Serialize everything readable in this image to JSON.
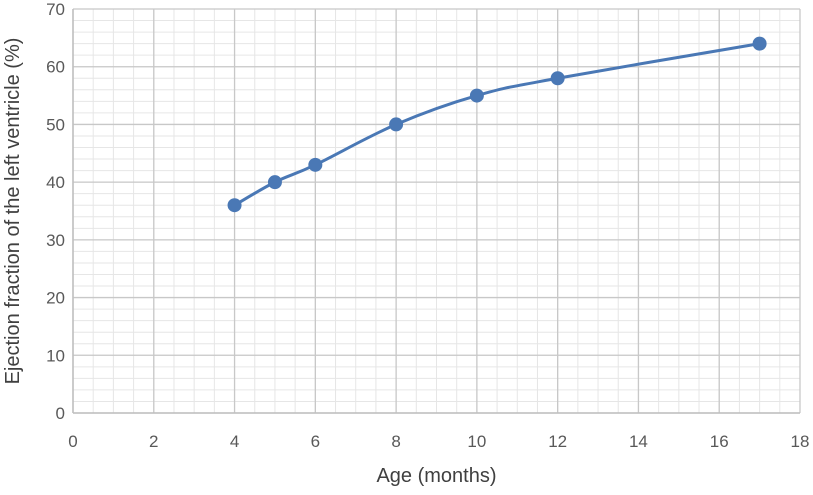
{
  "chart_data": {
    "type": "line",
    "title": "",
    "xlabel": "Age (months)",
    "ylabel": "Ejection fraction of the left ventricle (%)",
    "xlim": [
      0,
      18
    ],
    "ylim": [
      0,
      70
    ],
    "x_ticks": [
      0,
      2,
      4,
      6,
      8,
      10,
      12,
      14,
      16,
      18
    ],
    "y_ticks": [
      0,
      10,
      20,
      30,
      40,
      50,
      60,
      70
    ],
    "x_minor_step": 0.5,
    "y_minor_step": 2,
    "grid": true,
    "legend": "none",
    "series": [
      {
        "x": [
          4,
          5,
          6,
          8,
          10,
          12,
          17
        ],
        "y": [
          36,
          40,
          43,
          50,
          55,
          58,
          64
        ],
        "color": "#4a78b5",
        "marker": "circle",
        "smooth": true
      }
    ],
    "colors": {
      "major_grid": "#c8c8c8",
      "minor_grid": "#e6e6e6",
      "axis": "#bfbfbf"
    }
  }
}
